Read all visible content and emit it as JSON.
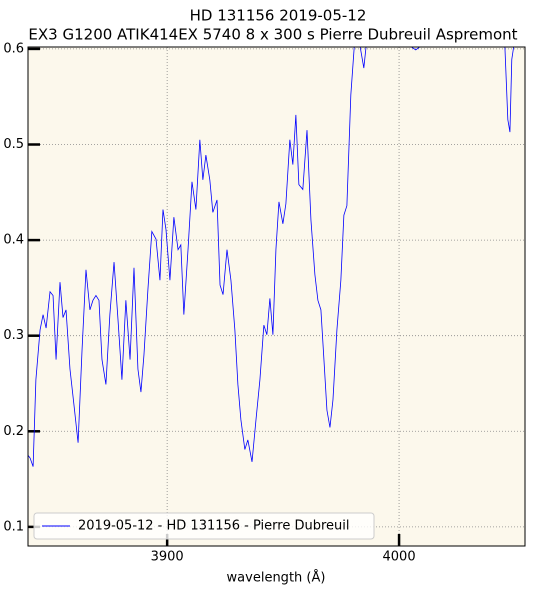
{
  "chart_data": {
    "type": "line",
    "title": "HD 131156 2019-05-12",
    "subtitle": "EX3 G1200 ATIK414EX 5740 8 x 300 s Pierre Dubreuil Aspremont",
    "x_label": "wavelength (Å)",
    "x": [
      3840.0,
      3840.9,
      3842.2,
      3843.4,
      3845.2,
      3846.5,
      3847.8,
      3849.5,
      3850.8,
      3852.1,
      3853.8,
      3855.1,
      3856.4,
      3858.1,
      3859.8,
      3861.6,
      3863.3,
      3865.0,
      3866.7,
      3868.0,
      3869.3,
      3870.6,
      3871.9,
      3873.6,
      3875.3,
      3877.1,
      3878.8,
      3880.5,
      3882.2,
      3884.0,
      3885.7,
      3887.4,
      3888.7,
      3890.0,
      3891.7,
      3893.4,
      3895.2,
      3896.9,
      3898.2,
      3899.5,
      3901.2,
      3902.9,
      3904.7,
      3905.9,
      3907.2,
      3909.0,
      3910.7,
      3912.4,
      3914.1,
      3915.4,
      3916.7,
      3918.4,
      3919.7,
      3921.5,
      3922.8,
      3924.1,
      3925.8,
      3927.5,
      3929.2,
      3930.5,
      3931.8,
      3933.5,
      3934.8,
      3936.6,
      3938.3,
      3940.0,
      3941.7,
      3943.0,
      3944.3,
      3945.6,
      3946.9,
      3948.2,
      3949.9,
      3951.2,
      3952.9,
      3954.2,
      3955.5,
      3956.8,
      3958.5,
      3960.3,
      3962.0,
      3963.7,
      3965.0,
      3966.3,
      3967.6,
      3968.9,
      3970.2,
      3971.5,
      3973.2,
      3974.9,
      3976.2,
      3977.5,
      3979.2,
      3980.9,
      3983.1,
      3984.8,
      3986.1,
      3989.6,
      3996.0,
      4000.3,
      4007.2,
      4013.3,
      4030.5,
      4045.6,
      4046.9,
      4047.8,
      4048.6,
      4049.9,
      4054.2
    ],
    "series": [
      {
        "name": "2019-05-12 - HD 131156 - Pierre Dubreuil",
        "color": "#0000ff",
        "values": [
          0.175,
          0.172,
          0.163,
          0.254,
          0.306,
          0.322,
          0.308,
          0.346,
          0.342,
          0.275,
          0.356,
          0.319,
          0.327,
          0.265,
          0.228,
          0.188,
          0.285,
          0.369,
          0.327,
          0.337,
          0.342,
          0.337,
          0.275,
          0.249,
          0.322,
          0.377,
          0.317,
          0.254,
          0.337,
          0.275,
          0.371,
          0.265,
          0.241,
          0.28,
          0.348,
          0.409,
          0.401,
          0.358,
          0.432,
          0.411,
          0.358,
          0.424,
          0.39,
          0.395,
          0.322,
          0.39,
          0.461,
          0.432,
          0.505,
          0.463,
          0.489,
          0.463,
          0.429,
          0.442,
          0.353,
          0.343,
          0.39,
          0.358,
          0.306,
          0.249,
          0.212,
          0.181,
          0.191,
          0.168,
          0.212,
          0.254,
          0.311,
          0.301,
          0.339,
          0.301,
          0.39,
          0.44,
          0.417,
          0.438,
          0.505,
          0.479,
          0.531,
          0.458,
          0.453,
          0.515,
          0.421,
          0.364,
          0.337,
          0.327,
          0.275,
          0.222,
          0.204,
          0.233,
          0.306,
          0.358,
          0.426,
          0.436,
          0.552,
          0.61,
          0.604,
          0.58,
          0.61,
          0.61,
          0.604,
          0.61,
          0.599,
          0.61,
          0.61,
          0.604,
          0.526,
          0.513,
          0.589,
          0.61,
          0.61
        ]
      }
    ],
    "xlim": [
      3840,
      4054.3
    ],
    "ylim": [
      0.08,
      0.602
    ],
    "xticks": [
      3900,
      4000
    ],
    "yticks": [
      0.1,
      0.2,
      0.3,
      0.4,
      0.5,
      0.6
    ],
    "grid": true,
    "legend": "lower left",
    "background": "#fcf8ec"
  }
}
